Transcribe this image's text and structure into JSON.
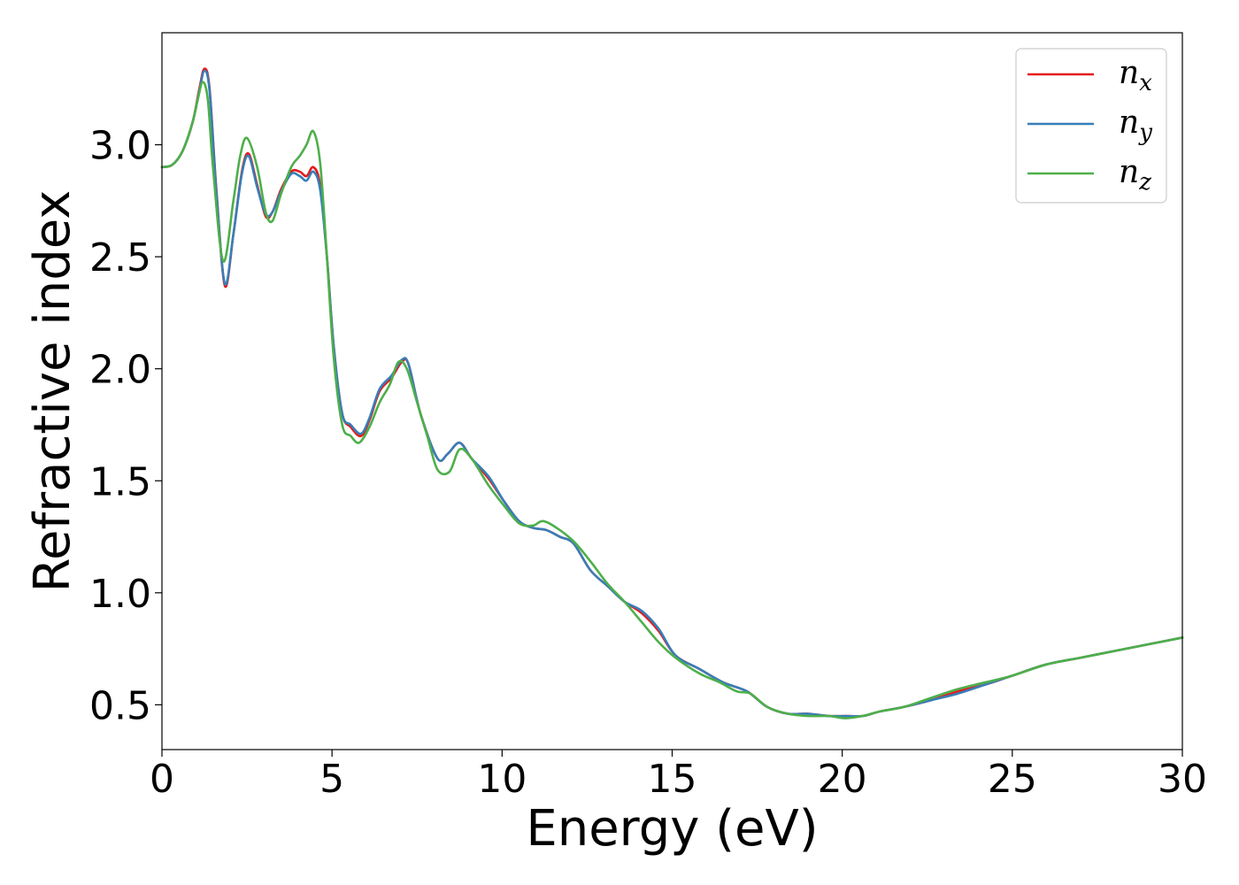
{
  "chart_data": {
    "type": "line",
    "title": "",
    "xlabel": "Energy (eV)",
    "ylabel": "Refractive index",
    "xlim": [
      0,
      30
    ],
    "ylim": [
      0.3,
      3.5
    ],
    "xticks": [
      0,
      5,
      10,
      15,
      20,
      25,
      30
    ],
    "yticks": [
      0.5,
      1.0,
      1.5,
      2.0,
      2.5,
      3.0
    ],
    "xtick_labels": [
      "0",
      "5",
      "10",
      "15",
      "20",
      "25",
      "30"
    ],
    "ytick_labels": [
      "0.5",
      "1.0",
      "1.5",
      "2.0",
      "2.5",
      "3.0"
    ],
    "grid": false,
    "legend_position": "top-right",
    "series": [
      {
        "name": "n",
        "subscript": "x",
        "color": "#e41a1c",
        "x": [
          0,
          0.3,
          0.6,
          0.9,
          1.1,
          1.25,
          1.4,
          1.6,
          1.85,
          2.1,
          2.35,
          2.55,
          2.8,
          3.05,
          3.25,
          3.5,
          3.8,
          4.05,
          4.25,
          4.45,
          4.65,
          4.85,
          5.05,
          5.3,
          5.55,
          5.85,
          6.1,
          6.4,
          6.75,
          7.05,
          7.25,
          7.6,
          8.1,
          8.4,
          8.75,
          9.1,
          9.6,
          10.05,
          10.5,
          10.9,
          11.3,
          11.7,
          12.1,
          12.6,
          13.1,
          13.6,
          14.1,
          14.6,
          15.1,
          15.8,
          16.5,
          17.2,
          17.8,
          18.4,
          19.0,
          19.6,
          20.1,
          20.6,
          21.1,
          21.8,
          22.6,
          23.4,
          24.2,
          25.0,
          26.0,
          27.0,
          28.0,
          29.0,
          30.0
        ],
        "values": [
          2.9,
          2.91,
          2.97,
          3.1,
          3.25,
          3.34,
          3.25,
          2.8,
          2.37,
          2.6,
          2.88,
          2.96,
          2.82,
          2.68,
          2.7,
          2.8,
          2.88,
          2.88,
          2.86,
          2.9,
          2.82,
          2.5,
          2.1,
          1.8,
          1.74,
          1.7,
          1.77,
          1.9,
          1.96,
          2.03,
          2.02,
          1.8,
          1.6,
          1.62,
          1.67,
          1.6,
          1.51,
          1.41,
          1.32,
          1.29,
          1.28,
          1.25,
          1.22,
          1.1,
          1.03,
          0.96,
          0.91,
          0.83,
          0.72,
          0.66,
          0.6,
          0.56,
          0.49,
          0.46,
          0.46,
          0.45,
          0.45,
          0.45,
          0.47,
          0.49,
          0.52,
          0.56,
          0.59,
          0.63,
          0.68,
          0.71,
          0.74,
          0.77,
          0.8
        ]
      },
      {
        "name": "n",
        "subscript": "y",
        "color": "#377eb8",
        "x": [
          0,
          0.3,
          0.6,
          0.9,
          1.1,
          1.25,
          1.4,
          1.6,
          1.85,
          2.1,
          2.35,
          2.55,
          2.8,
          3.05,
          3.25,
          3.5,
          3.8,
          4.05,
          4.25,
          4.45,
          4.65,
          4.85,
          5.05,
          5.3,
          5.55,
          5.85,
          6.1,
          6.4,
          6.75,
          7.05,
          7.25,
          7.6,
          8.1,
          8.4,
          8.75,
          9.1,
          9.6,
          10.05,
          10.5,
          10.9,
          11.3,
          11.7,
          12.1,
          12.6,
          13.1,
          13.6,
          14.1,
          14.6,
          15.1,
          15.8,
          16.5,
          17.2,
          17.8,
          18.4,
          19.0,
          19.6,
          20.1,
          20.6,
          21.1,
          21.8,
          22.6,
          23.4,
          24.2,
          25.0,
          26.0,
          27.0,
          28.0,
          29.0,
          30.0
        ],
        "values": [
          2.9,
          2.91,
          2.97,
          3.1,
          3.24,
          3.33,
          3.24,
          2.79,
          2.38,
          2.6,
          2.87,
          2.95,
          2.81,
          2.69,
          2.7,
          2.79,
          2.87,
          2.86,
          2.84,
          2.88,
          2.8,
          2.5,
          2.1,
          1.8,
          1.75,
          1.71,
          1.78,
          1.91,
          1.97,
          2.04,
          2.02,
          1.8,
          1.6,
          1.62,
          1.67,
          1.6,
          1.52,
          1.41,
          1.32,
          1.29,
          1.28,
          1.25,
          1.22,
          1.1,
          1.03,
          0.96,
          0.92,
          0.84,
          0.72,
          0.66,
          0.6,
          0.56,
          0.49,
          0.46,
          0.46,
          0.45,
          0.45,
          0.45,
          0.47,
          0.49,
          0.52,
          0.55,
          0.59,
          0.63,
          0.68,
          0.71,
          0.74,
          0.77,
          0.8
        ]
      },
      {
        "name": "n",
        "subscript": "z",
        "color": "#4daf4a",
        "x": [
          0,
          0.3,
          0.6,
          0.9,
          1.05,
          1.2,
          1.35,
          1.5,
          1.8,
          2.1,
          2.3,
          2.5,
          2.8,
          3.05,
          3.25,
          3.5,
          3.8,
          4.05,
          4.25,
          4.45,
          4.65,
          4.85,
          5.05,
          5.3,
          5.55,
          5.8,
          6.1,
          6.4,
          6.7,
          6.95,
          7.2,
          7.5,
          7.8,
          8.1,
          8.45,
          8.75,
          9.1,
          9.6,
          10.05,
          10.5,
          10.9,
          11.2,
          11.6,
          12.1,
          12.6,
          13.1,
          13.6,
          14.1,
          14.6,
          15.1,
          15.8,
          16.4,
          16.9,
          17.3,
          17.8,
          18.4,
          19.0,
          19.6,
          20.1,
          20.6,
          21.1,
          21.8,
          22.6,
          23.4,
          24.2,
          25.0,
          26.0,
          27.0,
          28.0,
          29.0,
          30.0
        ],
        "values": [
          2.9,
          2.91,
          2.97,
          3.1,
          3.2,
          3.28,
          3.2,
          2.9,
          2.48,
          2.75,
          2.95,
          3.03,
          2.9,
          2.7,
          2.66,
          2.78,
          2.9,
          2.95,
          3.0,
          3.06,
          2.92,
          2.5,
          2.05,
          1.75,
          1.7,
          1.67,
          1.74,
          1.85,
          1.93,
          2.03,
          2.0,
          1.85,
          1.7,
          1.55,
          1.54,
          1.64,
          1.6,
          1.48,
          1.39,
          1.31,
          1.3,
          1.32,
          1.29,
          1.23,
          1.14,
          1.04,
          0.96,
          0.87,
          0.78,
          0.71,
          0.64,
          0.6,
          0.56,
          0.55,
          0.49,
          0.46,
          0.45,
          0.45,
          0.44,
          0.45,
          0.47,
          0.49,
          0.53,
          0.57,
          0.6,
          0.63,
          0.68,
          0.71,
          0.74,
          0.77,
          0.8
        ]
      }
    ]
  }
}
